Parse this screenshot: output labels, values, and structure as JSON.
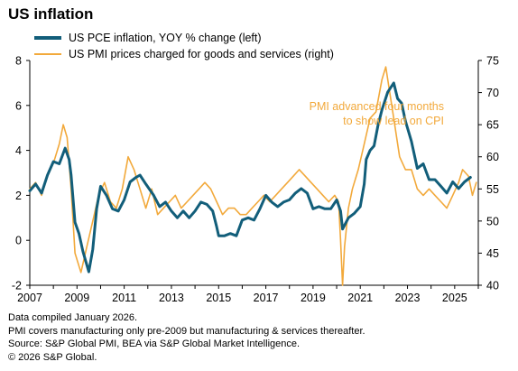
{
  "title": "US inflation",
  "legend": [
    {
      "label": "US PCE inflation, YOY % change (left)",
      "color": "#125e7a"
    },
    {
      "label": "US PMI prices charged for goods and services (right)",
      "color": "#f2a93b"
    }
  ],
  "annotation": {
    "line1": "PMI advanced four months",
    "line2": "to show lead on CPI"
  },
  "footnotes": [
    "Data compiled January 2026.",
    "PMI covers manufacturing only pre-2009 but manufacturing & services thereafter.",
    "Source: S&P Global PMI, BEA via S&P Global Market Intelligence.",
    "© 2026 S&P Global."
  ],
  "chart_data": {
    "type": "line",
    "x_range": [
      "2007-01",
      "2025-12"
    ],
    "x_tick_labels": [
      "2007",
      "2009",
      "2011",
      "2013",
      "2015",
      "2017",
      "2019",
      "2021",
      "2023",
      "2025"
    ],
    "y_left": {
      "range": [
        -2,
        8
      ],
      "ticks": [
        -2,
        0,
        2,
        4,
        6,
        8
      ]
    },
    "y_right": {
      "range": [
        40,
        75
      ],
      "ticks": [
        40,
        45,
        50,
        55,
        60,
        65,
        70,
        75
      ]
    },
    "grid": false,
    "legend_position": "top-left",
    "series": [
      {
        "name": "US PCE inflation, YOY % change (left)",
        "axis": "left",
        "color": "#125e7a",
        "points": [
          [
            "2007-01",
            2.2
          ],
          [
            "2007-04",
            2.5
          ],
          [
            "2007-07",
            2.1
          ],
          [
            "2007-10",
            2.9
          ],
          [
            "2008-01",
            3.5
          ],
          [
            "2008-04",
            3.4
          ],
          [
            "2008-07",
            4.1
          ],
          [
            "2008-09",
            3.6
          ],
          [
            "2008-10",
            2.9
          ],
          [
            "2008-12",
            0.8
          ],
          [
            "2009-02",
            0.3
          ],
          [
            "2009-04",
            -0.5
          ],
          [
            "2009-07",
            -1.4
          ],
          [
            "2009-09",
            -0.4
          ],
          [
            "2009-11",
            1.4
          ],
          [
            "2010-01",
            2.4
          ],
          [
            "2010-04",
            2.0
          ],
          [
            "2010-07",
            1.4
          ],
          [
            "2010-10",
            1.3
          ],
          [
            "2011-01",
            1.8
          ],
          [
            "2011-04",
            2.6
          ],
          [
            "2011-07",
            2.8
          ],
          [
            "2011-09",
            2.9
          ],
          [
            "2011-12",
            2.5
          ],
          [
            "2012-04",
            2.0
          ],
          [
            "2012-07",
            1.5
          ],
          [
            "2012-10",
            1.7
          ],
          [
            "2013-01",
            1.3
          ],
          [
            "2013-04",
            1.0
          ],
          [
            "2013-07",
            1.3
          ],
          [
            "2013-10",
            1.0
          ],
          [
            "2014-01",
            1.3
          ],
          [
            "2014-04",
            1.7
          ],
          [
            "2014-07",
            1.6
          ],
          [
            "2014-10",
            1.3
          ],
          [
            "2014-12",
            0.6
          ],
          [
            "2015-01",
            0.2
          ],
          [
            "2015-04",
            0.2
          ],
          [
            "2015-07",
            0.3
          ],
          [
            "2015-10",
            0.2
          ],
          [
            "2016-01",
            0.9
          ],
          [
            "2016-04",
            1.0
          ],
          [
            "2016-07",
            0.9
          ],
          [
            "2016-10",
            1.4
          ],
          [
            "2017-01",
            2.0
          ],
          [
            "2017-04",
            1.7
          ],
          [
            "2017-07",
            1.5
          ],
          [
            "2017-10",
            1.7
          ],
          [
            "2018-01",
            1.8
          ],
          [
            "2018-04",
            2.1
          ],
          [
            "2018-07",
            2.3
          ],
          [
            "2018-10",
            2.1
          ],
          [
            "2019-01",
            1.4
          ],
          [
            "2019-04",
            1.5
          ],
          [
            "2019-07",
            1.4
          ],
          [
            "2019-10",
            1.4
          ],
          [
            "2020-01",
            1.8
          ],
          [
            "2020-03",
            1.3
          ],
          [
            "2020-04",
            0.5
          ],
          [
            "2020-07",
            1.0
          ],
          [
            "2020-10",
            1.2
          ],
          [
            "2021-01",
            1.5
          ],
          [
            "2021-03",
            2.5
          ],
          [
            "2021-04",
            3.6
          ],
          [
            "2021-06",
            4.0
          ],
          [
            "2021-08",
            4.2
          ],
          [
            "2021-10",
            5.1
          ],
          [
            "2021-12",
            5.8
          ],
          [
            "2022-03",
            6.6
          ],
          [
            "2022-06",
            7.0
          ],
          [
            "2022-08",
            6.3
          ],
          [
            "2022-10",
            6.1
          ],
          [
            "2022-12",
            5.3
          ],
          [
            "2023-03",
            4.4
          ],
          [
            "2023-06",
            3.2
          ],
          [
            "2023-09",
            3.4
          ],
          [
            "2023-12",
            2.7
          ],
          [
            "2024-03",
            2.7
          ],
          [
            "2024-06",
            2.4
          ],
          [
            "2024-09",
            2.1
          ],
          [
            "2024-12",
            2.6
          ],
          [
            "2025-03",
            2.3
          ],
          [
            "2025-06",
            2.6
          ],
          [
            "2025-09",
            2.8
          ]
        ]
      },
      {
        "name": "US PMI prices charged for goods and services (right)",
        "axis": "right",
        "color": "#f2a93b",
        "points": [
          [
            "2007-01",
            55
          ],
          [
            "2007-04",
            56
          ],
          [
            "2007-07",
            54
          ],
          [
            "2007-10",
            57
          ],
          [
            "2008-01",
            59
          ],
          [
            "2008-04",
            62
          ],
          [
            "2008-06",
            65
          ],
          [
            "2008-08",
            63
          ],
          [
            "2008-10",
            55
          ],
          [
            "2008-12",
            45
          ],
          [
            "2009-03",
            42
          ],
          [
            "2009-06",
            46
          ],
          [
            "2009-09",
            50
          ],
          [
            "2009-12",
            54
          ],
          [
            "2010-03",
            56
          ],
          [
            "2010-06",
            53
          ],
          [
            "2010-09",
            52
          ],
          [
            "2010-12",
            55
          ],
          [
            "2011-03",
            60
          ],
          [
            "2011-06",
            58
          ],
          [
            "2011-09",
            55
          ],
          [
            "2011-12",
            52
          ],
          [
            "2012-03",
            55
          ],
          [
            "2012-06",
            51
          ],
          [
            "2012-09",
            52
          ],
          [
            "2012-12",
            53
          ],
          [
            "2013-03",
            54
          ],
          [
            "2013-06",
            52
          ],
          [
            "2013-09",
            53
          ],
          [
            "2013-12",
            54
          ],
          [
            "2014-03",
            55
          ],
          [
            "2014-06",
            56
          ],
          [
            "2014-09",
            55
          ],
          [
            "2014-12",
            53
          ],
          [
            "2015-03",
            51
          ],
          [
            "2015-06",
            52
          ],
          [
            "2015-09",
            52
          ],
          [
            "2015-12",
            51
          ],
          [
            "2016-03",
            51
          ],
          [
            "2016-06",
            52
          ],
          [
            "2016-09",
            53
          ],
          [
            "2016-12",
            54
          ],
          [
            "2017-03",
            53
          ],
          [
            "2017-06",
            54
          ],
          [
            "2017-09",
            55
          ],
          [
            "2017-12",
            56
          ],
          [
            "2018-03",
            57
          ],
          [
            "2018-06",
            58
          ],
          [
            "2018-09",
            57
          ],
          [
            "2018-12",
            56
          ],
          [
            "2019-03",
            55
          ],
          [
            "2019-06",
            54
          ],
          [
            "2019-09",
            53
          ],
          [
            "2019-12",
            54
          ],
          [
            "2020-02",
            53
          ],
          [
            "2020-03",
            47
          ],
          [
            "2020-04",
            40
          ],
          [
            "2020-05",
            46
          ],
          [
            "2020-07",
            52
          ],
          [
            "2020-09",
            55
          ],
          [
            "2020-12",
            58
          ],
          [
            "2021-03",
            62
          ],
          [
            "2021-06",
            66
          ],
          [
            "2021-09",
            67
          ],
          [
            "2021-12",
            72
          ],
          [
            "2022-02",
            74
          ],
          [
            "2022-04",
            70
          ],
          [
            "2022-06",
            66
          ],
          [
            "2022-09",
            60
          ],
          [
            "2022-12",
            58
          ],
          [
            "2023-03",
            58
          ],
          [
            "2023-06",
            55
          ],
          [
            "2023-09",
            54
          ],
          [
            "2023-12",
            55
          ],
          [
            "2024-03",
            54
          ],
          [
            "2024-06",
            53
          ],
          [
            "2024-09",
            52
          ],
          [
            "2024-12",
            54
          ],
          [
            "2025-03",
            56
          ],
          [
            "2025-05",
            58
          ],
          [
            "2025-08",
            57
          ],
          [
            "2025-10",
            54
          ],
          [
            "2025-12",
            56
          ]
        ]
      }
    ]
  }
}
